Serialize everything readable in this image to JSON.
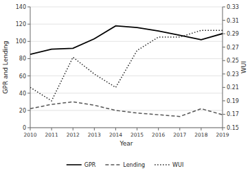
{
  "chart_data": {
    "type": "line",
    "xlabel": "Year",
    "ylabel": "GPR and Lending",
    "y2label": "WUI",
    "x": [
      2010,
      2011,
      2012,
      2013,
      2014,
      2015,
      2016,
      2017,
      2018,
      2019
    ],
    "series": [
      {
        "name": "GPR",
        "color": "#000000",
        "line_style": "solid",
        "values": [
          85,
          91,
          92,
          103,
          118,
          116,
          112,
          107,
          102,
          109
        ]
      },
      {
        "name": "Lending",
        "color": "#555555",
        "line_style": "dashed",
        "values": [
          22,
          27,
          30,
          26,
          20,
          17,
          15,
          13,
          22,
          15
        ]
      },
      {
        "name": "WUI",
        "color": "#222222",
        "line_style": "dotted",
        "axis": "y2",
        "values": [
          0.21,
          0.19,
          0.255,
          0.23,
          0.21,
          0.265,
          0.285,
          0.285,
          0.295,
          0.295
        ]
      }
    ],
    "xlim": [
      2010,
      2019
    ],
    "xticks": [
      2010,
      2011,
      2012,
      2013,
      2014,
      2015,
      2016,
      2017,
      2018,
      2019
    ],
    "ylim": [
      0,
      140
    ],
    "yticks": [
      0,
      20,
      40,
      60,
      80,
      100,
      120,
      140
    ],
    "y2lim": [
      0.15,
      0.33
    ],
    "y2ticks": [
      0.15,
      0.17,
      0.19,
      0.21,
      0.23,
      0.25,
      0.27,
      0.29,
      0.31,
      0.33
    ],
    "grid": true,
    "legend": "bottom"
  }
}
